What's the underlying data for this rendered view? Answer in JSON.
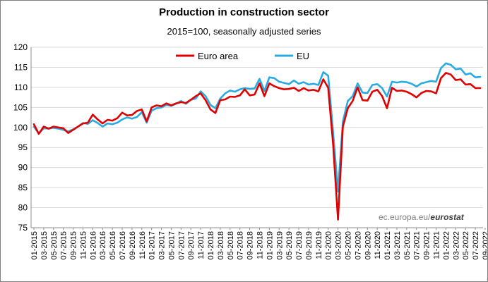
{
  "chart_data": {
    "type": "line",
    "title": "Production in construction sector",
    "subtitle": "2015=100, seasonally adjusted series",
    "xlabel": "",
    "ylabel": "",
    "ylim": [
      75,
      120
    ],
    "yticks": [
      75,
      80,
      85,
      90,
      95,
      100,
      105,
      110,
      115,
      120
    ],
    "grid": true,
    "legend": "top-center",
    "x_start": "2015-01",
    "x_end": "2022-09",
    "xtick_labels": [
      "01-2015",
      "03-2015",
      "05-2015",
      "07-2015",
      "09-2015",
      "11-2015",
      "01-2016",
      "03-2016",
      "05-2016",
      "07-2016",
      "09-2016",
      "11-2016",
      "01-2017",
      "03-2017",
      "05-2017",
      "07-2017",
      "09-2017",
      "11-2017",
      "01-2018",
      "03-2018",
      "05-2018",
      "07-2018",
      "09-2018",
      "11-2018",
      "01-2019",
      "03-2019",
      "05-2019",
      "07-2019",
      "09-2019",
      "11-2019",
      "01-2020",
      "03-2020",
      "05-2020",
      "07-2020",
      "09-2020",
      "11-2020",
      "01-2021",
      "03-2021",
      "05-2021",
      "07-2021",
      "09-2021",
      "11-2021",
      "01-2022",
      "03-2022",
      "05-2022",
      "07-2022",
      "09-2022"
    ],
    "series": [
      {
        "name": "Euro area",
        "color": "#e00000",
        "values": [
          100.8,
          98.4,
          100.2,
          99.7,
          100.2,
          100.0,
          99.8,
          98.6,
          99.4,
          100.2,
          101.0,
          101.2,
          103.2,
          102.0,
          101.0,
          101.9,
          101.7,
          102.3,
          103.7,
          103.0,
          103.1,
          104.1,
          104.5,
          101.5,
          105.0,
          105.5,
          105.3,
          106.0,
          105.5,
          106.0,
          106.3,
          106.1,
          106.9,
          107.8,
          108.5,
          106.8,
          104.5,
          103.6,
          106.8,
          107.0,
          107.7,
          107.6,
          108.0,
          109.5,
          108.0,
          108.2,
          111.0,
          107.8,
          111.0,
          110.3,
          109.8,
          109.5,
          109.6,
          109.9,
          109.1,
          109.8,
          109.2,
          109.4,
          109.0,
          112.0,
          109.9,
          96.0,
          77.0,
          100.2,
          104.8,
          106.6,
          110.0,
          106.8,
          106.7,
          108.9,
          109.4,
          107.8,
          104.8,
          109.9,
          109.1,
          109.2,
          108.9,
          108.3,
          107.5,
          108.6,
          109.1,
          109.0,
          108.5,
          112.3,
          113.6,
          113.2,
          111.8,
          112.0,
          110.7,
          110.8,
          109.8,
          109.8
        ]
      },
      {
        "name": "EU",
        "color": "#29abe2",
        "values": [
          100.2,
          98.5,
          99.8,
          99.7,
          99.9,
          99.7,
          99.4,
          99.0,
          99.5,
          100.2,
          101.1,
          100.9,
          101.8,
          101.1,
          100.2,
          101.0,
          100.8,
          101.2,
          102.0,
          102.5,
          102.2,
          102.6,
          103.8,
          101.2,
          104.2,
          104.8,
          105.0,
          105.6,
          105.4,
          105.9,
          106.6,
          105.9,
          106.9,
          107.2,
          109.0,
          107.8,
          105.6,
          104.8,
          107.2,
          108.5,
          109.2,
          108.9,
          109.5,
          109.8,
          109.6,
          109.7,
          112.1,
          109.1,
          112.5,
          112.3,
          111.4,
          111.1,
          110.8,
          111.7,
          110.9,
          111.3,
          110.7,
          110.9,
          110.6,
          113.8,
          112.9,
          99.0,
          84.0,
          101.5,
          106.6,
          107.8,
          111.0,
          108.7,
          108.6,
          110.6,
          110.8,
          109.8,
          107.7,
          111.4,
          111.2,
          111.4,
          111.3,
          110.9,
          110.2,
          111.0,
          111.3,
          111.6,
          111.4,
          114.8,
          116.0,
          115.6,
          114.5,
          114.7,
          113.2,
          113.5,
          112.5,
          112.6
        ]
      }
    ]
  },
  "credit": {
    "prefix": "ec.europa.eu/",
    "brand": "eurostat"
  }
}
